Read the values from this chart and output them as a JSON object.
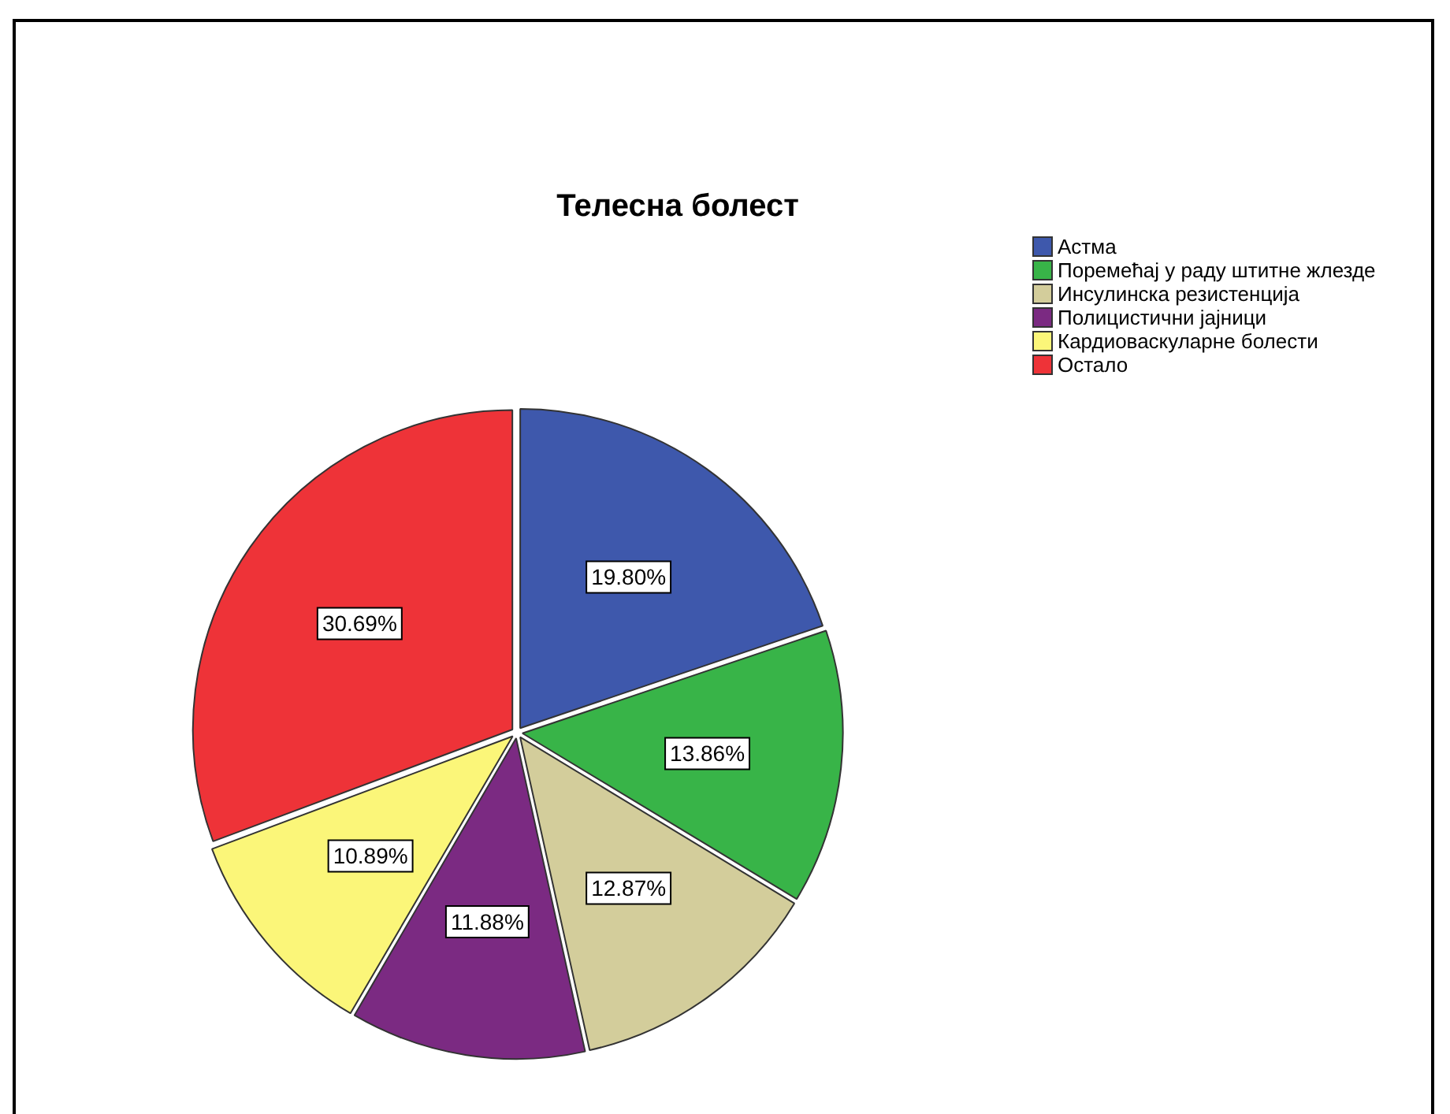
{
  "chart_data": {
    "type": "pie",
    "title": "Телесна болест",
    "categories": [
      "Астма",
      "Поремећај у раду штитне жлезде",
      "Инсулинска резистенција",
      "Полицистични јајници",
      "Кардиоваскуларне болести",
      "Остало"
    ],
    "values": [
      19.8,
      13.86,
      12.87,
      11.88,
      10.89,
      30.69
    ],
    "value_labels": [
      "19.80%",
      "13.86%",
      "12.87%",
      "11.88%",
      "10.89%",
      "30.69%"
    ],
    "colors": [
      "#3e58ac",
      "#38b448",
      "#d3cd9b",
      "#7b2a82",
      "#fbf679",
      "#ee3338"
    ],
    "legend": "right"
  }
}
